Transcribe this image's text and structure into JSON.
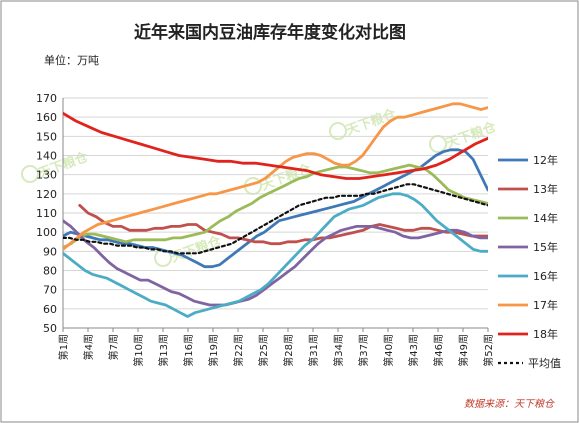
{
  "chart_data": {
    "type": "line",
    "title": "近年来国内豆油库存年度变化对比图",
    "unit_label": "单位：万吨",
    "source": "数据来源：天下粮仓",
    "watermark": "天下粮仓",
    "ylim": [
      50,
      170
    ],
    "yticks": [
      50,
      60,
      70,
      80,
      90,
      100,
      110,
      120,
      130,
      140,
      150,
      160,
      170
    ],
    "xticks": [
      "第1周",
      "第4周",
      "第7周",
      "第10周",
      "第13周",
      "第16周",
      "第19周",
      "第22周",
      "第25周",
      "第28周",
      "第31周",
      "第34周",
      "第37周",
      "第40周",
      "第43周",
      "第46周",
      "第49周",
      "第52周"
    ],
    "grid": true,
    "legend_position": "right",
    "series": [
      {
        "name": "12年",
        "color": "#3f79b5",
        "style": "solid",
        "values": [
          98,
          100,
          99,
          98,
          97,
          96,
          96,
          95,
          94,
          94,
          93,
          92,
          92,
          91,
          90,
          89,
          88,
          86,
          84,
          82,
          82,
          83,
          86,
          89,
          92,
          95,
          98,
          100,
          103,
          106,
          107,
          108,
          109,
          110,
          111,
          112,
          113,
          114,
          115,
          116,
          118,
          120,
          122,
          124,
          126,
          128,
          130,
          132,
          134,
          137,
          140,
          142,
          143,
          143,
          142,
          138,
          130,
          122
        ]
      },
      {
        "name": "13年",
        "color": "#c0504d",
        "style": "solid",
        "values": [
          null,
          null,
          114,
          110,
          108,
          105,
          103,
          103,
          101,
          101,
          101,
          102,
          102,
          103,
          103,
          104,
          104,
          101,
          100,
          99,
          97,
          97,
          96,
          95,
          95,
          94,
          94,
          95,
          95,
          96,
          96,
          97,
          97,
          98,
          99,
          100,
          101,
          103,
          104,
          103,
          102,
          101,
          101,
          102,
          102,
          101,
          100,
          100,
          99,
          98,
          98,
          98
        ]
      },
      {
        "name": "14年",
        "color": "#9bbb59",
        "style": "solid",
        "values": [
          92,
          94,
          97,
          99,
          99,
          98,
          97,
          96,
          95,
          96,
          96,
          96,
          96,
          96,
          97,
          97,
          98,
          99,
          100,
          103,
          106,
          108,
          111,
          113,
          115,
          118,
          120,
          122,
          124,
          126,
          128,
          129,
          131,
          132,
          133,
          134,
          134,
          133,
          132,
          131,
          131,
          132,
          133,
          134,
          135,
          134,
          133,
          130,
          126,
          122,
          120,
          118,
          117,
          116,
          115
        ]
      },
      {
        "name": "15年",
        "color": "#8064a2",
        "style": "solid",
        "values": [
          106,
          103,
          99,
          95,
          92,
          88,
          84,
          81,
          79,
          77,
          75,
          75,
          73,
          71,
          69,
          68,
          66,
          64,
          63,
          62,
          62,
          62,
          63,
          64,
          65,
          67,
          70,
          73,
          76,
          79,
          82,
          86,
          90,
          94,
          97,
          99,
          101,
          102,
          103,
          103,
          103,
          102,
          101,
          100,
          98,
          97,
          97,
          98,
          99,
          100,
          101,
          101,
          100,
          98,
          97,
          97
        ]
      },
      {
        "name": "16年",
        "color": "#4bacc6",
        "style": "solid",
        "values": [
          89,
          86,
          83,
          80,
          78,
          77,
          76,
          74,
          72,
          70,
          68,
          66,
          64,
          63,
          62,
          60,
          58,
          56,
          58,
          59,
          60,
          61,
          62,
          63,
          64,
          66,
          68,
          70,
          73,
          77,
          81,
          85,
          89,
          93,
          96,
          100,
          104,
          108,
          110,
          112,
          113,
          114,
          116,
          118,
          119,
          120,
          120,
          119,
          117,
          114,
          110,
          106,
          103,
          100,
          97,
          94,
          91,
          90,
          90
        ]
      },
      {
        "name": "17年",
        "color": "#f79646",
        "style": "solid",
        "values": [
          91,
          94,
          97,
          100,
          102,
          104,
          105,
          106,
          107,
          108,
          109,
          110,
          111,
          112,
          113,
          114,
          115,
          116,
          117,
          118,
          119,
          120,
          120,
          121,
          122,
          123,
          124,
          125,
          126,
          128,
          131,
          134,
          137,
          139,
          140,
          141,
          141,
          140,
          138,
          136,
          135,
          135,
          137,
          140,
          145,
          150,
          155,
          158,
          160,
          160,
          161,
          162,
          163,
          164,
          165,
          166,
          167,
          167,
          166,
          165,
          164,
          165
        ]
      },
      {
        "name": "18年",
        "color": "#e0231c",
        "style": "solid",
        "values": [
          162,
          158,
          155,
          152,
          150,
          148,
          146,
          144,
          142,
          140,
          139,
          138,
          137,
          137,
          136,
          136,
          135,
          134,
          133,
          132,
          130,
          129,
          128,
          128,
          129,
          130,
          131,
          132,
          133,
          135,
          138,
          142,
          146,
          149
        ]
      },
      {
        "name": "平均值",
        "color": "#111111",
        "style": "dashed",
        "values": [
          97,
          97,
          96,
          96,
          95,
          95,
          94,
          94,
          93,
          93,
          93,
          92,
          92,
          91,
          91,
          90,
          90,
          89,
          89,
          89,
          89,
          90,
          91,
          92,
          93,
          94,
          96,
          98,
          100,
          102,
          104,
          106,
          108,
          110,
          112,
          114,
          115,
          116,
          117,
          118,
          118,
          119,
          119,
          119,
          119,
          120,
          120,
          121,
          122,
          123,
          124,
          125,
          125,
          124,
          123,
          122,
          121,
          120,
          119,
          118,
          117,
          116,
          115,
          114
        ]
      }
    ]
  }
}
